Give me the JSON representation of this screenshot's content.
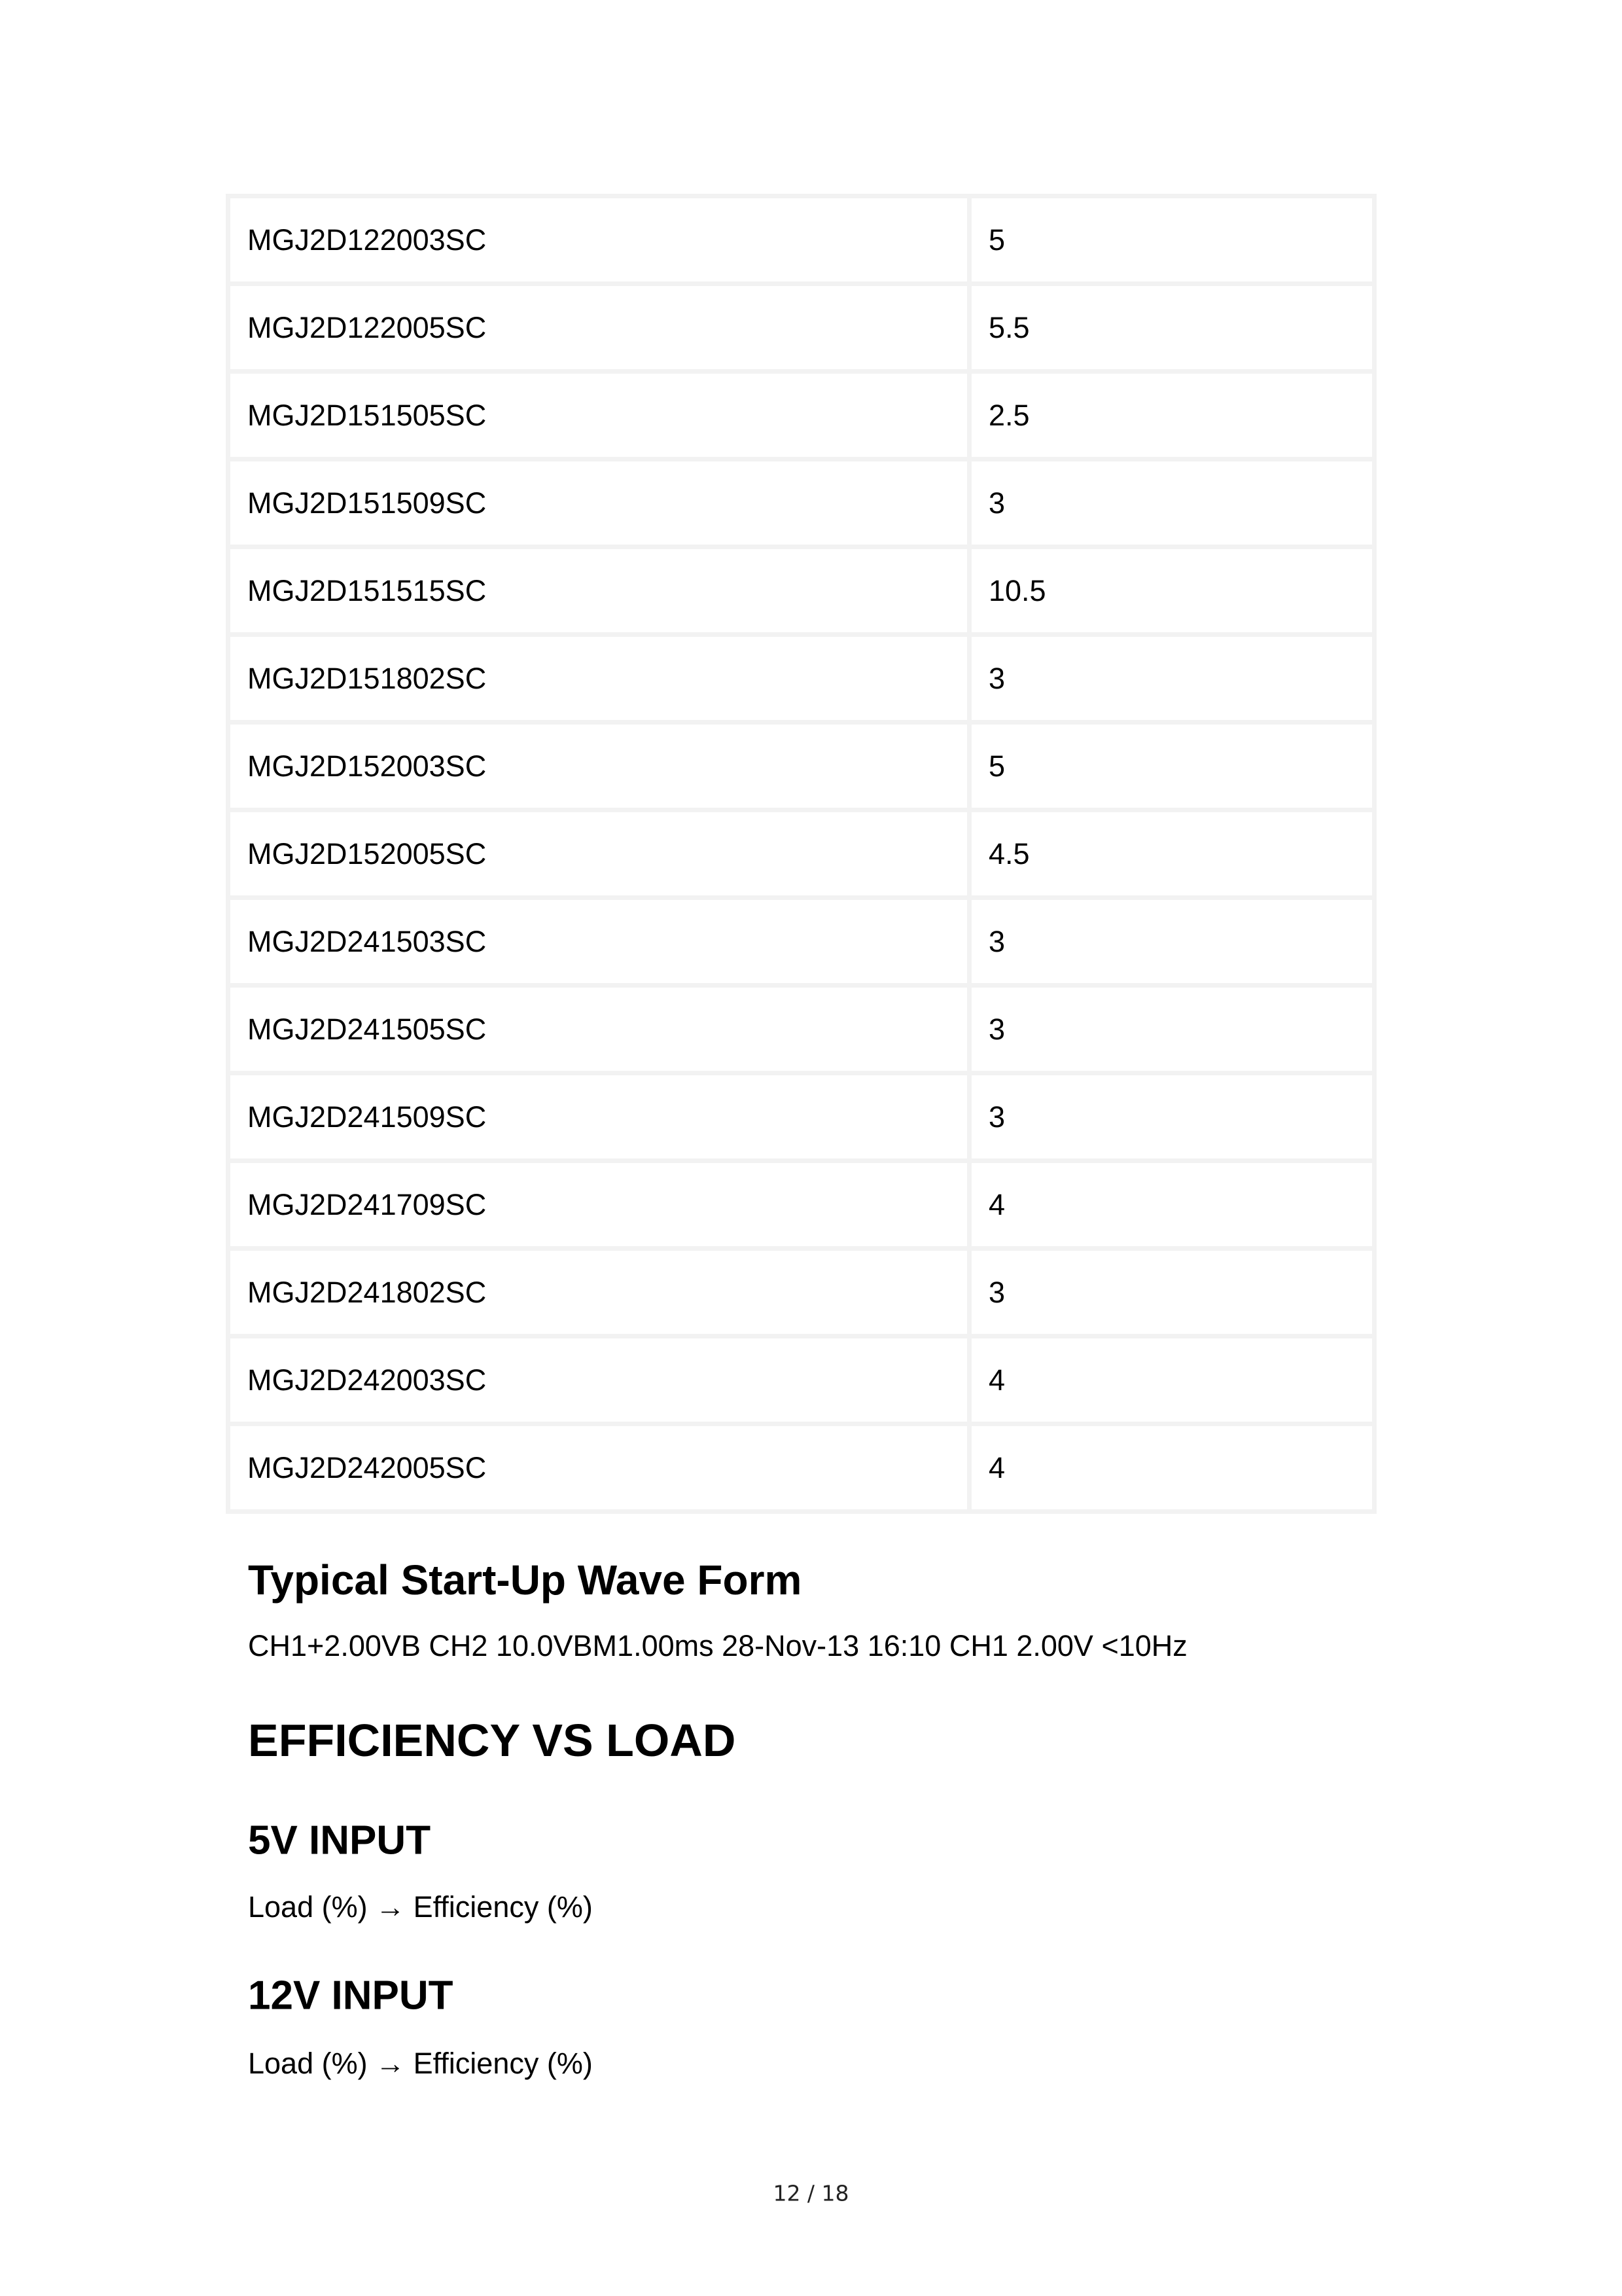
{
  "table": {
    "rows": [
      [
        "MGJ2D122003SC",
        "5"
      ],
      [
        "MGJ2D122005SC",
        "5.5"
      ],
      [
        "MGJ2D151505SC",
        "2.5"
      ],
      [
        "MGJ2D151509SC",
        "3"
      ],
      [
        "MGJ2D151515SC",
        "10.5"
      ],
      [
        "MGJ2D151802SC",
        "3"
      ],
      [
        "MGJ2D152003SC",
        "5"
      ],
      [
        "MGJ2D152005SC",
        "4.5"
      ],
      [
        "MGJ2D241503SC",
        "3"
      ],
      [
        "MGJ2D241505SC",
        "3"
      ],
      [
        "MGJ2D241509SC",
        "3"
      ],
      [
        "MGJ2D241709SC",
        "4"
      ],
      [
        "MGJ2D241802SC",
        "3"
      ],
      [
        "MGJ2D242003SC",
        "4"
      ],
      [
        "MGJ2D242005SC",
        "4"
      ]
    ]
  },
  "startup": {
    "heading": "Typical Start-Up Wave Form",
    "caption": "CH1+2.00VB CH2 10.0VBM1.00ms 28-Nov-13 16:10 CH1 2.00V <10Hz"
  },
  "efficiency": {
    "heading": "EFFICIENCY VS LOAD",
    "sections": [
      {
        "heading": "5V INPUT",
        "text": "Load (%) → Efficiency (%)"
      },
      {
        "heading": "12V INPUT",
        "text": "Load (%) → Efficiency (%)"
      }
    ]
  },
  "footer": {
    "page": "12 / 18"
  }
}
